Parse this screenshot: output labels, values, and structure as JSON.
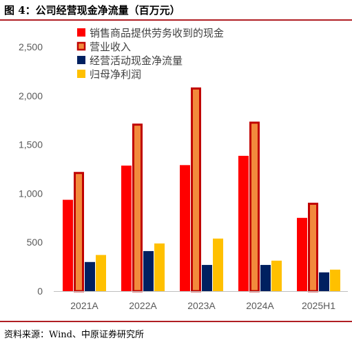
{
  "title": "图 4：公司经营现金净流量（百万元）",
  "source": "资料来源：Wind、中原证券研究所",
  "chart_data": {
    "type": "bar",
    "categories": [
      "2021A",
      "2022A",
      "2023A",
      "2024A",
      "2025H1"
    ],
    "ylim": [
      0,
      2500
    ],
    "yticks": [
      0,
      500,
      1000,
      1500,
      2000,
      2500
    ],
    "ytick_labels": [
      "0",
      "500",
      "1,000",
      "1,500",
      "2,000",
      "2,500"
    ],
    "grid": false,
    "legend_position": "top-right",
    "series": [
      {
        "name": "销售商品提供劳务收到的现金",
        "values": [
          935,
          1285,
          1290,
          1385,
          750
        ],
        "color": "#ff0000",
        "style": "solid"
      },
      {
        "name": "营业收入",
        "values": [
          1220,
          1715,
          2085,
          1735,
          905
        ],
        "color": "#f28a3c",
        "border": "#c00000",
        "style": "outlined"
      },
      {
        "name": "经营活动现金净流量",
        "values": [
          298,
          410,
          268,
          268,
          192
        ],
        "color": "#002060",
        "style": "solid"
      },
      {
        "name": "归母净利润",
        "values": [
          370,
          488,
          538,
          312,
          220
        ],
        "color": "#ffc000",
        "style": "solid"
      }
    ]
  }
}
